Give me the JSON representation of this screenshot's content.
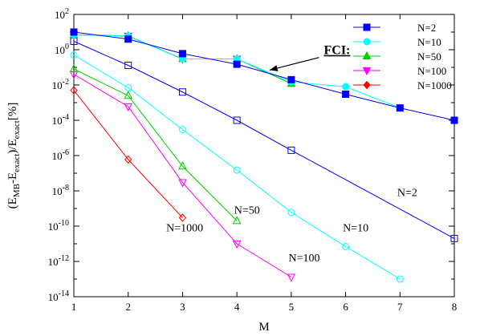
{
  "chart_data": {
    "type": "line",
    "xlabel": "M",
    "ylabel_parts": {
      "a": "(E",
      "b": "MB",
      "c": "-E",
      "d": "exact",
      "e": ")/E",
      "f": "exact",
      "g": "[%]"
    },
    "xlim": [
      1,
      8
    ],
    "ylim_log10": [
      -14,
      2
    ],
    "yscale": "log",
    "grid": false,
    "legend_placement": "top-right",
    "x_ticks": [
      "1",
      "2",
      "3",
      "4",
      "5",
      "6",
      "7",
      "8"
    ],
    "y_ticks": [
      {
        "mant": "10",
        "exp": "2",
        "log": 2
      },
      {
        "mant": "10",
        "exp": "0",
        "log": 0
      },
      {
        "mant": "10",
        "exp": "-2",
        "log": -2
      },
      {
        "mant": "10",
        "exp": "-4",
        "log": -4
      },
      {
        "mant": "10",
        "exp": "-6",
        "log": -6
      },
      {
        "mant": "10",
        "exp": "-8",
        "log": -8
      },
      {
        "mant": "10",
        "exp": "-10",
        "log": -10
      },
      {
        "mant": "10",
        "exp": "-12",
        "log": -12
      },
      {
        "mant": "10",
        "exp": "-14",
        "log": -14
      }
    ],
    "legend": [
      {
        "label": "N=2",
        "color": "#0000ff",
        "marker": "square"
      },
      {
        "label": "N=10",
        "color": "#00ffff",
        "marker": "circle"
      },
      {
        "label": "N=50",
        "color": "#00cc00",
        "marker": "triangle-up"
      },
      {
        "label": "N=100",
        "color": "#ff00ff",
        "marker": "triangle-down"
      },
      {
        "label": "N=1000",
        "color": "#ff0000",
        "marker": "diamond"
      }
    ],
    "fci_series": [
      {
        "name": "N=2",
        "color": "#0000ff",
        "marker": "square",
        "x": [
          1,
          2,
          3,
          4,
          5,
          6,
          7,
          8
        ],
        "y": [
          10,
          4,
          0.6,
          0.15,
          0.02,
          0.003,
          0.0005,
          0.0001
        ]
      },
      {
        "name": "N=10",
        "color": "#00ffff",
        "marker": "circle",
        "x": [
          1,
          2,
          3,
          4,
          5,
          6,
          7
        ],
        "y": [
          7,
          6,
          0.3,
          0.3,
          0.015,
          0.008,
          0.0005
        ]
      },
      {
        "name": "N=50",
        "color": "#00cc00",
        "marker": "triangle-up",
        "x": [
          1,
          2,
          3,
          4,
          5
        ],
        "y": [
          7,
          6,
          0.3,
          0.3,
          0.012
        ]
      },
      {
        "name": "N=100",
        "color": "#ff00ff",
        "marker": "triangle-down",
        "x": [
          1,
          2,
          3,
          4
        ],
        "y": [
          7,
          6,
          0.3,
          0.3
        ]
      },
      {
        "name": "N=1000",
        "color": "#ff0000",
        "marker": "diamond",
        "x": [
          1,
          2,
          3
        ],
        "y": [
          7,
          6,
          0.3
        ]
      }
    ],
    "mb_series": [
      {
        "name": "N=2",
        "color": "#0000ff",
        "marker": "square",
        "x": [
          1,
          2,
          3,
          4,
          5,
          8
        ],
        "y": [
          3,
          0.13,
          0.004,
          0.0001,
          2e-06,
          2e-11
        ]
      },
      {
        "name": "N=10",
        "color": "#00ffff",
        "marker": "circle",
        "x": [
          1,
          2,
          3,
          4,
          5,
          6,
          7
        ],
        "y": [
          0.5,
          0.007,
          3e-05,
          1.5e-07,
          6e-10,
          7e-12,
          1e-13
        ]
      },
      {
        "name": "N=50",
        "color": "#00cc00",
        "marker": "triangle-up",
        "x": [
          1,
          2,
          3,
          4
        ],
        "y": [
          0.08,
          0.0025,
          2.5e-07,
          2e-10
        ]
      },
      {
        "name": "N=100",
        "color": "#ff00ff",
        "marker": "triangle-down",
        "x": [
          1,
          2,
          3,
          4,
          5
        ],
        "y": [
          0.04,
          0.0006,
          3e-08,
          1e-11,
          1.3e-13
        ]
      },
      {
        "name": "N=1000",
        "color": "#ff0000",
        "marker": "diamond",
        "x": [
          1,
          2,
          3
        ],
        "y": [
          0.005,
          6e-07,
          3e-10
        ]
      }
    ],
    "annotations": [
      {
        "text": "N=2",
        "x": 6.95,
        "y": 5e-09
      },
      {
        "text": "N=10",
        "x": 5.95,
        "y": 5e-11
      },
      {
        "text": "N=50",
        "x": 3.95,
        "y": 5e-10
      },
      {
        "text": "N=100",
        "x": 4.95,
        "y": 1e-12
      },
      {
        "text": "N=1000",
        "x": 2.7,
        "y": 5e-11
      }
    ],
    "fci_label": {
      "text": "FCI:",
      "x": 5.6,
      "y": 0.55,
      "arrow_to": {
        "x": 4.6,
        "y": 0.07
      }
    }
  }
}
